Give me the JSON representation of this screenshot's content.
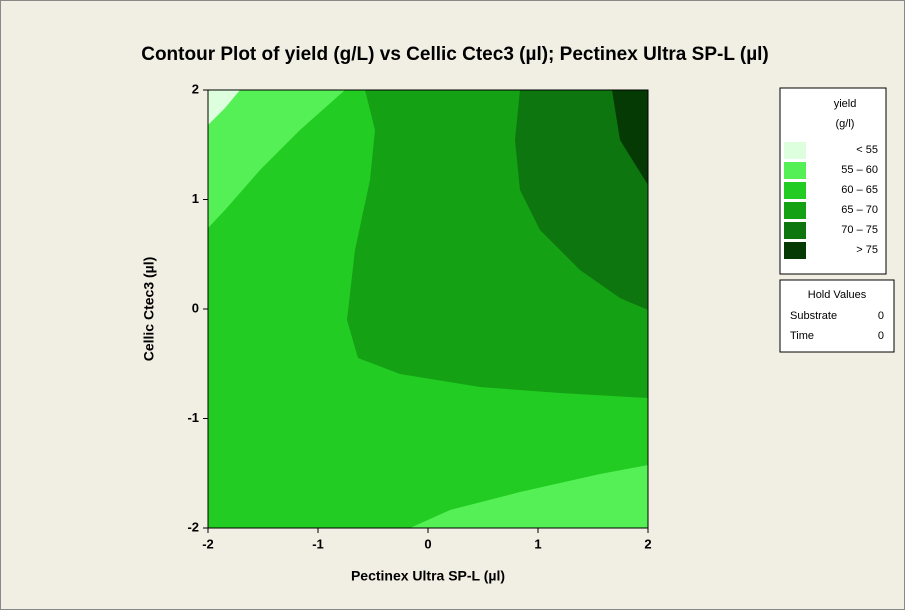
{
  "chart_data": {
    "type": "contour",
    "title": "Contour Plot of yield (g/L) vs Cellic Ctec3 (µl); Pectinex Ultra SP-L (µl)",
    "x_label": "Pectinex Ultra SP-L (µl)",
    "y_label": "Cellic Ctec3 (µl)",
    "xlim": [
      -2,
      2
    ],
    "ylim": [
      -2,
      2
    ],
    "xticks": [
      -2,
      -1,
      0,
      1,
      2
    ],
    "yticks": [
      -2,
      -1,
      0,
      1,
      2
    ],
    "legend": {
      "title": [
        "yield",
        "(g/l)"
      ],
      "items": [
        {
          "label": "<  55",
          "color": "#ddffdd"
        },
        {
          "label": "55  –  60",
          "color": "#55f055"
        },
        {
          "label": "60  –  65",
          "color": "#22cc22"
        },
        {
          "label": "65  –  70",
          "color": "#14a114"
        },
        {
          "label": "70  –  75",
          "color": "#0e760e"
        },
        {
          "label": ">  75",
          "color": "#053a05"
        }
      ]
    },
    "hold_values": {
      "title": "Hold Values",
      "items": [
        {
          "name": "Substrate",
          "value": 0
        },
        {
          "name": "Time",
          "value": 0
        }
      ]
    }
  }
}
